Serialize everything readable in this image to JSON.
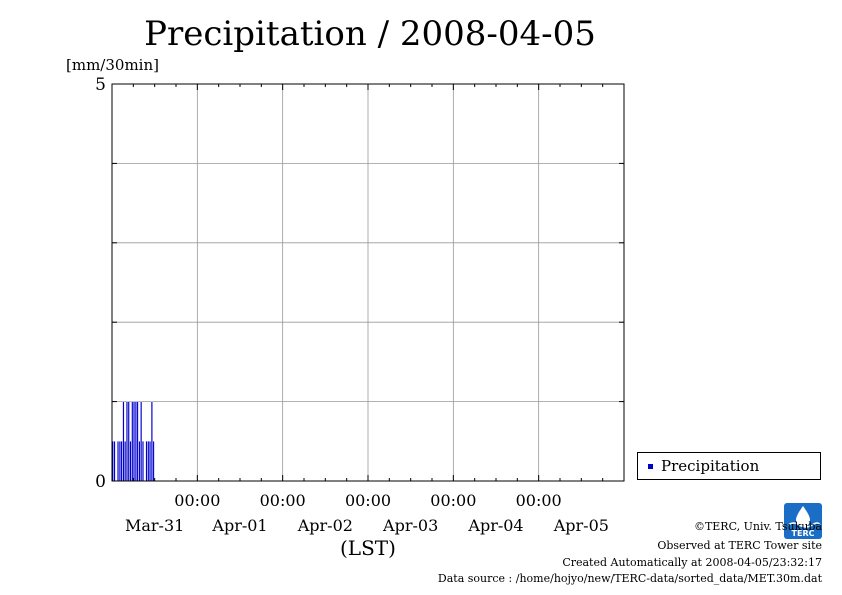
{
  "chart_data": {
    "type": "bar",
    "title": "Precipitation / 2008-04-05",
    "ylabel": "[mm/30min]",
    "xlabel": "(LST)",
    "ylim": [
      0,
      5
    ],
    "yticks": [
      0,
      5
    ],
    "xrange_hours": [
      0,
      144
    ],
    "time_tick_label": "00:00",
    "day_labels": [
      "Mar-31",
      "Apr-01",
      "Apr-02",
      "Apr-03",
      "Apr-04",
      "Apr-05"
    ],
    "grid": true,
    "legend_position": "bottom-right",
    "series": [
      {
        "name": "Precipitation",
        "color": "#0000cc",
        "bin_hours": 0.5,
        "start_hour": 0,
        "values": [
          0.5,
          0.5,
          0,
          0.5,
          0.5,
          0.5,
          1,
          0.5,
          1,
          1,
          0.5,
          1,
          1,
          1,
          1,
          0.5,
          1,
          0.5,
          0,
          0.5,
          0.5,
          0.5,
          1,
          0.5
        ]
      }
    ]
  },
  "credits": {
    "copyright": "©TERC, Univ. Tsukuba",
    "site": "Observed at TERC Tower site",
    "created": "Created Automatically at 2008-04-05/23:32:17",
    "source": "Data source : /home/hojyo/new/TERC-data/sorted_data/MET.30m.dat",
    "logo_text": "TERC"
  }
}
